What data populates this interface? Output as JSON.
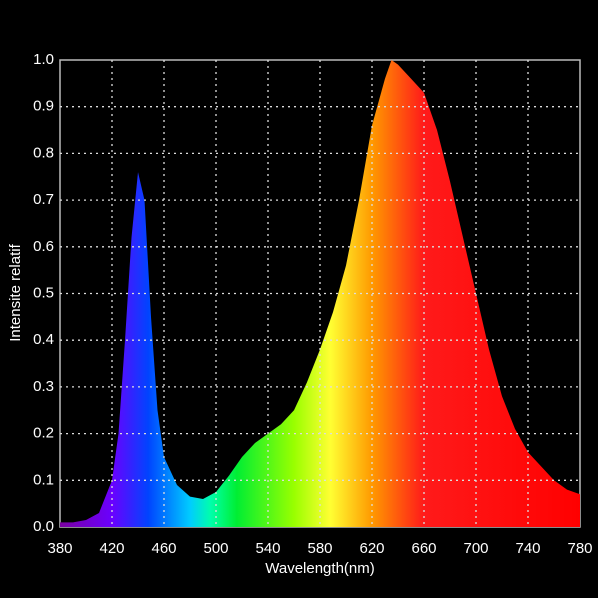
{
  "chart_data": {
    "type": "area",
    "x_label": "Wavelength(nm)",
    "y_label": "Intensite relatif",
    "x": [
      380,
      390,
      400,
      410,
      420,
      425,
      430,
      435,
      440,
      445,
      450,
      455,
      460,
      470,
      480,
      490,
      500,
      510,
      520,
      530,
      540,
      550,
      560,
      570,
      580,
      590,
      600,
      610,
      620,
      630,
      635,
      640,
      650,
      660,
      670,
      680,
      690,
      700,
      710,
      720,
      730,
      740,
      750,
      760,
      770,
      780
    ],
    "values": [
      0.01,
      0.01,
      0.015,
      0.03,
      0.1,
      0.2,
      0.4,
      0.62,
      0.76,
      0.7,
      0.45,
      0.25,
      0.15,
      0.09,
      0.065,
      0.06,
      0.075,
      0.11,
      0.15,
      0.18,
      0.2,
      0.22,
      0.25,
      0.31,
      0.38,
      0.46,
      0.56,
      0.7,
      0.86,
      0.96,
      1.0,
      0.99,
      0.96,
      0.93,
      0.85,
      0.74,
      0.62,
      0.5,
      0.38,
      0.28,
      0.21,
      0.16,
      0.13,
      0.1,
      0.08,
      0.07
    ],
    "xlim": [
      380,
      780
    ],
    "xticks": [
      380,
      420,
      460,
      500,
      540,
      580,
      620,
      660,
      700,
      740,
      780
    ],
    "ylim": [
      0,
      1
    ],
    "yticks": [
      {
        "value": 0,
        "label": "0.0"
      },
      0.1,
      0.2,
      0.3,
      0.4,
      0.5,
      0.6,
      0.7,
      0.8,
      0.9,
      {
        "value": 1,
        "label": "1.0"
      }
    ],
    "grid": true
  }
}
